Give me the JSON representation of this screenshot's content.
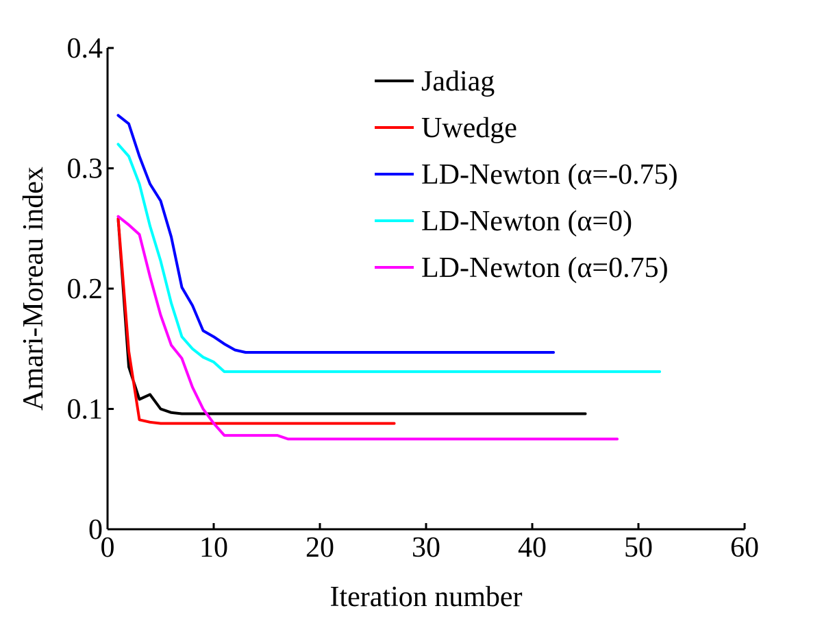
{
  "chart_data": {
    "type": "line",
    "title": "",
    "xlabel": "Iteration number",
    "ylabel": "Amari-Moreau index",
    "xlim": [
      0,
      60
    ],
    "ylim": [
      0,
      0.4
    ],
    "xticks": [
      0,
      10,
      20,
      30,
      40,
      50,
      60
    ],
    "yticks": [
      0,
      0.1,
      0.2,
      0.3,
      0.4
    ],
    "xtick_labels": [
      "0",
      "10",
      "20",
      "30",
      "40",
      "50",
      "60"
    ],
    "ytick_labels": [
      "0",
      "0.1",
      "0.2",
      "0.3",
      "0.4"
    ],
    "grid": false,
    "legend_position": "top-right",
    "series": [
      {
        "name": "Jadiag",
        "color": "#000000",
        "x": [
          1,
          2,
          3,
          4,
          5,
          6,
          7,
          8,
          10,
          20,
          30,
          40,
          45
        ],
        "y": [
          0.258,
          0.135,
          0.108,
          0.112,
          0.1,
          0.097,
          0.096,
          0.096,
          0.096,
          0.096,
          0.096,
          0.096,
          0.096
        ]
      },
      {
        "name": "Uwedge",
        "color": "#ff0000",
        "x": [
          1,
          2,
          3,
          4,
          5,
          6,
          8,
          10,
          15,
          20,
          27
        ],
        "y": [
          0.258,
          0.148,
          0.091,
          0.089,
          0.088,
          0.088,
          0.088,
          0.088,
          0.088,
          0.088,
          0.088
        ]
      },
      {
        "name": "LD-Newton (α=-0.75)",
        "color": "#0000ff",
        "x": [
          1,
          2,
          3,
          4,
          5,
          6,
          7,
          8,
          9,
          10,
          11,
          12,
          13,
          20,
          30,
          42
        ],
        "y": [
          0.344,
          0.337,
          0.31,
          0.287,
          0.273,
          0.243,
          0.201,
          0.186,
          0.165,
          0.16,
          0.154,
          0.149,
          0.147,
          0.147,
          0.147,
          0.147
        ]
      },
      {
        "name": "LD-Newton (α=0)",
        "color": "#00ffff",
        "x": [
          1,
          2,
          3,
          4,
          5,
          6,
          7,
          8,
          9,
          10,
          11,
          20,
          30,
          40,
          52
        ],
        "y": [
          0.32,
          0.31,
          0.287,
          0.252,
          0.223,
          0.188,
          0.16,
          0.15,
          0.143,
          0.139,
          0.131,
          0.131,
          0.131,
          0.131,
          0.131
        ]
      },
      {
        "name": "LD-Newton (α=0.75)",
        "color": "#ff00ff",
        "x": [
          1,
          2,
          3,
          4,
          5,
          6,
          7,
          8,
          9,
          10,
          11,
          12,
          14,
          16,
          17,
          20,
          30,
          40,
          48
        ],
        "y": [
          0.26,
          0.253,
          0.245,
          0.21,
          0.178,
          0.153,
          0.142,
          0.118,
          0.1,
          0.088,
          0.078,
          0.078,
          0.078,
          0.078,
          0.075,
          0.075,
          0.075,
          0.075,
          0.075
        ]
      }
    ]
  }
}
